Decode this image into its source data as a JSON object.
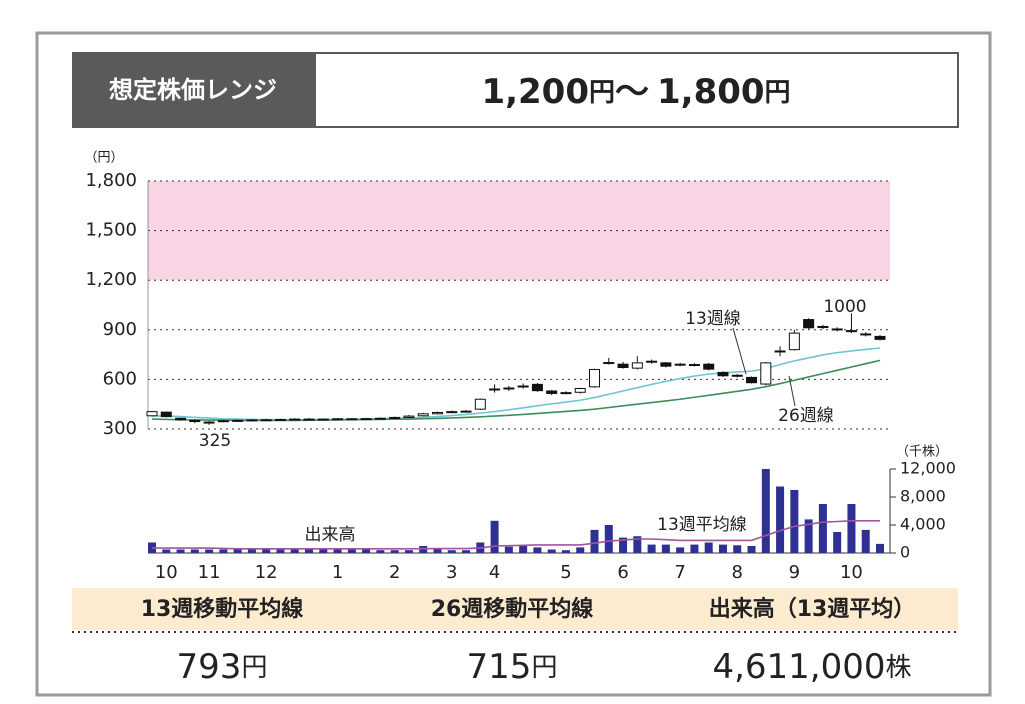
{
  "header": {
    "label": "想定株価レンジ",
    "range": {
      "low": "1,200",
      "unit": "円",
      "sep": "〜",
      "high": "1,800",
      "unit2": "円"
    }
  },
  "chart_data": {
    "type": "candlestick",
    "y_unit": "（円）",
    "y2_unit": "（千株）",
    "ylim": [
      300,
      1800
    ],
    "yticks": [
      300,
      600,
      900,
      {
        "value": 1200,
        "label": "1,200"
      },
      {
        "value": 1500,
        "label": "1,500"
      },
      {
        "value": 1800,
        "label": "1,800"
      }
    ],
    "y2lim": [
      0,
      12000
    ],
    "y2ticks": [
      0,
      {
        "value": 4000,
        "label": "4,000"
      },
      {
        "value": 8000,
        "label": "8,000"
      },
      {
        "value": 12000,
        "label": "12,000"
      }
    ],
    "band": [
      1200,
      1800
    ],
    "band_color": "#f8d4e4",
    "categories": [
      null,
      "10",
      null,
      null,
      "11",
      null,
      null,
      null,
      "12",
      null,
      null,
      null,
      null,
      "1",
      null,
      null,
      null,
      "2",
      null,
      null,
      null,
      "3",
      null,
      null,
      "4",
      null,
      null,
      null,
      null,
      "5",
      null,
      null,
      null,
      "6",
      null,
      null,
      null,
      "7",
      null,
      null,
      null,
      "8",
      null,
      null,
      null,
      "9",
      null,
      null,
      null,
      "10",
      null,
      null
    ],
    "candles": {
      "open": [
        380,
        402,
        365,
        352,
        342,
        345,
        350,
        352,
        355,
        356,
        358,
        360,
        358,
        360,
        362,
        360,
        363,
        365,
        370,
        380,
        392,
        400,
        408,
        420,
        540,
        542,
        558,
        570,
        530,
        515,
        522,
        555,
        700,
        692,
        668,
        705,
        700,
        688,
        690,
        692,
        642,
        625,
        612,
        572,
        768,
        780,
        962,
        915,
        905,
        895,
        875,
        860
      ],
      "high": [
        410,
        405,
        368,
        358,
        348,
        355,
        358,
        360,
        362,
        362,
        365,
        366,
        364,
        366,
        366,
        367,
        370,
        375,
        385,
        398,
        406,
        412,
        414,
        485,
        570,
        560,
        575,
        578,
        535,
        528,
        550,
        665,
        730,
        705,
        740,
        720,
        705,
        700,
        698,
        700,
        650,
        632,
        618,
        705,
        800,
        900,
        970,
        930,
        915,
        1000,
        885,
        868
      ],
      "low": [
        375,
        370,
        350,
        335,
        325,
        340,
        345,
        348,
        350,
        352,
        354,
        354,
        355,
        356,
        356,
        357,
        360,
        362,
        366,
        376,
        388,
        396,
        400,
        415,
        520,
        530,
        545,
        525,
        505,
        510,
        515,
        550,
        690,
        665,
        660,
        695,
        672,
        680,
        678,
        655,
        615,
        612,
        575,
        565,
        740,
        775,
        905,
        905,
        890,
        880,
        860,
        835
      ],
      "close": [
        405,
        375,
        355,
        345,
        338,
        350,
        352,
        355,
        356,
        358,
        360,
        358,
        360,
        362,
        360,
        363,
        365,
        370,
        378,
        392,
        400,
        405,
        404,
        480,
        542,
        548,
        560,
        532,
        515,
        520,
        545,
        660,
        702,
        672,
        700,
        710,
        680,
        692,
        688,
        662,
        622,
        620,
        580,
        700,
        772,
        880,
        912,
        920,
        900,
        890,
        870,
        842
      ]
    },
    "series": [
      {
        "name": "13週線",
        "color": "#6ec6d2",
        "values": [
          380,
          378,
          375,
          370,
          366,
          362,
          360,
          358,
          357,
          356,
          356,
          356,
          357,
          358,
          359,
          360,
          362,
          364,
          366,
          370,
          375,
          381,
          388,
          396,
          405,
          416,
          428,
          440,
          452,
          463,
          474,
          490,
          510,
          530,
          550,
          570,
          588,
          605,
          620,
          632,
          640,
          645,
          650,
          665,
          690,
          712,
          730,
          748,
          762,
          772,
          781,
          790
        ]
      },
      {
        "name": "26週線",
        "color": "#3e8c5c",
        "values": [
          360,
          358,
          356,
          355,
          354,
          353,
          352,
          352,
          352,
          352,
          352,
          353,
          354,
          355,
          356,
          357,
          358,
          359,
          360,
          362,
          364,
          367,
          370,
          374,
          378,
          383,
          388,
          394,
          400,
          406,
          412,
          420,
          430,
          440,
          450,
          460,
          470,
          480,
          492,
          504,
          516,
          528,
          540,
          556,
          575,
          595,
          615,
          635,
          655,
          675,
          695,
          715
        ]
      },
      {
        "name": "出来高",
        "color": "#2e3192",
        "axis": "y2",
        "values": [
          1500,
          500,
          500,
          500,
          500,
          500,
          500,
          500,
          500,
          500,
          500,
          500,
          500,
          500,
          500,
          500,
          400,
          400,
          400,
          1000,
          700,
          400,
          400,
          1500,
          4600,
          900,
          1000,
          800,
          500,
          400,
          800,
          3300,
          4000,
          2200,
          2400,
          1200,
          1200,
          800,
          1200,
          1500,
          1200,
          1100,
          1000,
          12000,
          9500,
          9000,
          4800,
          7000,
          3000,
          7000,
          3300,
          1300
        ]
      },
      {
        "name": "13週平均線",
        "color": "#a0559e",
        "axis": "y2",
        "values": [
          700,
          700,
          700,
          700,
          700,
          650,
          600,
          600,
          600,
          600,
          600,
          600,
          600,
          600,
          600,
          600,
          600,
          600,
          600,
          620,
          640,
          640,
          640,
          700,
          1000,
          1050,
          1100,
          1150,
          1150,
          1150,
          1150,
          1400,
          1700,
          1850,
          2000,
          2000,
          1900,
          1800,
          1800,
          1800,
          1800,
          1800,
          1800,
          2500,
          3200,
          3800,
          4100,
          4400,
          4500,
          4600,
          4600,
          4600
        ]
      }
    ],
    "annotations": [
      "325",
      "1000"
    ]
  },
  "summary": {
    "headers": [
      "13週移動平均線",
      "26週移動平均線",
      "出来高（13週平均）"
    ],
    "values": [
      {
        "number": "793",
        "unit": "円"
      },
      {
        "number": "715",
        "unit": "円"
      },
      {
        "number": "4,611,000",
        "unit": "株"
      }
    ]
  }
}
